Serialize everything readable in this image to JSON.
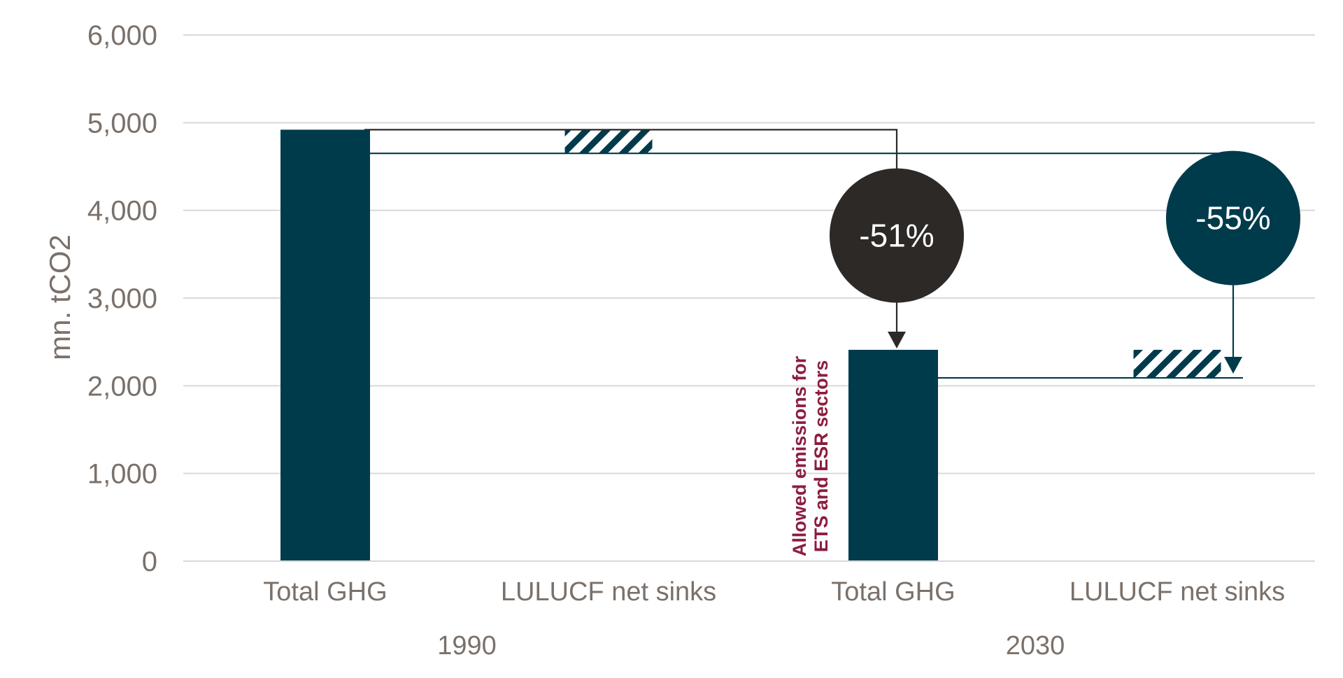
{
  "chart_data": {
    "type": "bar",
    "ylabel": "mn. tCO2",
    "ylim": [
      0,
      6000
    ],
    "yticks": [
      0,
      1000,
      2000,
      3000,
      4000,
      5000,
      6000
    ],
    "ytick_labels": [
      "0",
      "1,000",
      "2,000",
      "3,000",
      "4,000",
      "5,000",
      "6,000"
    ],
    "grid": true,
    "groups": [
      {
        "label": "1990",
        "bars": [
          {
            "category": "Total GHG",
            "kind": "solid",
            "base": 0,
            "top": 4920
          },
          {
            "category": "LULUCF net sinks",
            "kind": "hatched",
            "base": 4650,
            "top": 4920
          }
        ]
      },
      {
        "label": "2030",
        "bars": [
          {
            "category": "Total GHG",
            "kind": "solid",
            "base": 0,
            "top": 2410
          },
          {
            "category": "LULUCF net sinks",
            "kind": "hatched",
            "base": 2090,
            "top": 2410
          }
        ]
      }
    ],
    "reductions": [
      {
        "label": "-51%",
        "from": 4920,
        "to": 2410,
        "color": "#2d2926"
      },
      {
        "label": "-55%",
        "from": 4650,
        "to": 2090,
        "color": "#003b4c"
      }
    ],
    "annotation": [
      "Allowed emissions for",
      "ETS and ESR sectors"
    ],
    "colors": {
      "bar": "#003b4c",
      "dark_circle": "#2d2926",
      "teal_circle": "#003b4c",
      "annotation": "#8b1e3f",
      "grid": "#d9d9d9",
      "text": "#7b716a"
    }
  }
}
